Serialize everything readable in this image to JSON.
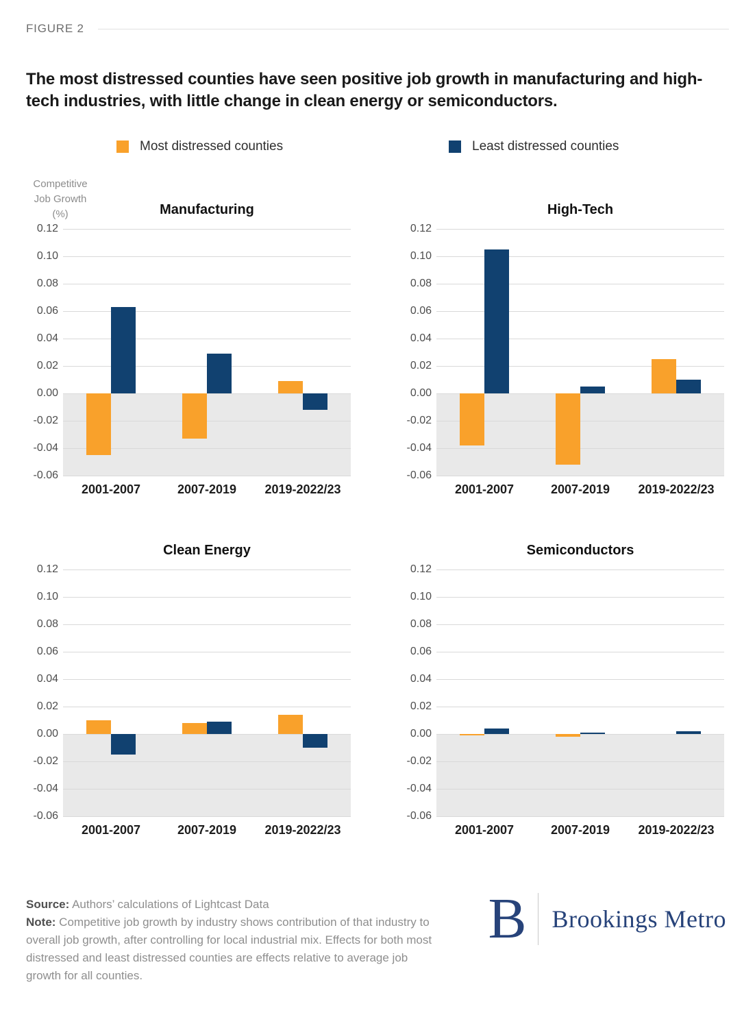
{
  "header": {
    "figure_label": "FIGURE 2"
  },
  "title": "The most distressed counties have seen positive job growth in manufacturing and high-tech industries, with little change in clean energy or semiconductors.",
  "legend": {
    "items": [
      {
        "label": "Most distressed counties",
        "color": "#F9A12B"
      },
      {
        "label": "Least distressed counties",
        "color": "#114170"
      }
    ]
  },
  "axis_unit_lines": {
    "line1": "Competitive",
    "line2": "Job Growth",
    "line3": "(%)"
  },
  "colors": {
    "orange": "#F9A12B",
    "navy": "#114170",
    "negative_region": "#E9E9E9",
    "gridline": "#D9D9D9",
    "logo_navy": "#27437A"
  },
  "chart_data": [
    {
      "type": "bar",
      "title": "Manufacturing",
      "categories": [
        "2001-2007",
        "2007-2019",
        "2019-2022/23"
      ],
      "series": [
        {
          "name": "Most distressed counties",
          "color": "#F9A12B",
          "values": [
            -0.045,
            -0.033,
            0.009
          ]
        },
        {
          "name": "Least distressed counties",
          "color": "#114170",
          "values": [
            0.063,
            0.029,
            -0.012
          ]
        }
      ],
      "ylim": [
        -0.06,
        0.12
      ],
      "yticks": [
        0.12,
        0.1,
        0.08,
        0.06,
        0.04,
        0.02,
        0.0,
        -0.02,
        -0.04,
        -0.06
      ],
      "ylabel": "Competitive Job Growth (%)",
      "grid": true,
      "legend_position": "top"
    },
    {
      "type": "bar",
      "title": "High-Tech",
      "categories": [
        "2001-2007",
        "2007-2019",
        "2019-2022/23"
      ],
      "series": [
        {
          "name": "Most distressed counties",
          "color": "#F9A12B",
          "values": [
            -0.038,
            -0.052,
            0.025
          ]
        },
        {
          "name": "Least distressed counties",
          "color": "#114170",
          "values": [
            0.105,
            0.005,
            0.01
          ]
        }
      ],
      "ylim": [
        -0.06,
        0.12
      ],
      "yticks": [
        0.12,
        0.1,
        0.08,
        0.06,
        0.04,
        0.02,
        0.0,
        -0.02,
        -0.04,
        -0.06
      ],
      "ylabel": "Competitive Job Growth (%)",
      "grid": true,
      "legend_position": "top"
    },
    {
      "type": "bar",
      "title": "Clean Energy",
      "categories": [
        "2001-2007",
        "2007-2019",
        "2019-2022/23"
      ],
      "series": [
        {
          "name": "Most distressed counties",
          "color": "#F9A12B",
          "values": [
            0.01,
            0.008,
            0.014
          ]
        },
        {
          "name": "Least distressed counties",
          "color": "#114170",
          "values": [
            -0.015,
            0.009,
            -0.01
          ]
        }
      ],
      "ylim": [
        -0.06,
        0.12
      ],
      "yticks": [
        0.12,
        0.1,
        0.08,
        0.06,
        0.04,
        0.02,
        0.0,
        -0.02,
        -0.04,
        -0.06
      ],
      "ylabel": "Competitive Job Growth (%)",
      "grid": true,
      "legend_position": "top"
    },
    {
      "type": "bar",
      "title": "Semiconductors",
      "categories": [
        "2001-2007",
        "2007-2019",
        "2019-2022/23"
      ],
      "series": [
        {
          "name": "Most distressed counties",
          "color": "#F9A12B",
          "values": [
            -0.001,
            -0.002,
            0.0
          ]
        },
        {
          "name": "Least distressed counties",
          "color": "#114170",
          "values": [
            0.004,
            0.001,
            0.002
          ]
        }
      ],
      "ylim": [
        -0.06,
        0.12
      ],
      "yticks": [
        0.12,
        0.1,
        0.08,
        0.06,
        0.04,
        0.02,
        0.0,
        -0.02,
        -0.04,
        -0.06
      ],
      "ylabel": "Competitive Job Growth (%)",
      "grid": true,
      "legend_position": "top"
    }
  ],
  "footer": {
    "source_label": "Source:",
    "source_text": " Authors’ calculations of Lightcast Data",
    "note_label": "Note:",
    "note_text": " Competitive job growth by industry shows contribution of that industry to overall job growth, after controlling for local industrial mix. Effects for both most distressed and least distressed counties are effects relative to average job growth for all counties.",
    "logo": {
      "monogram": "B",
      "wordmark": "Brookings Metro"
    }
  }
}
